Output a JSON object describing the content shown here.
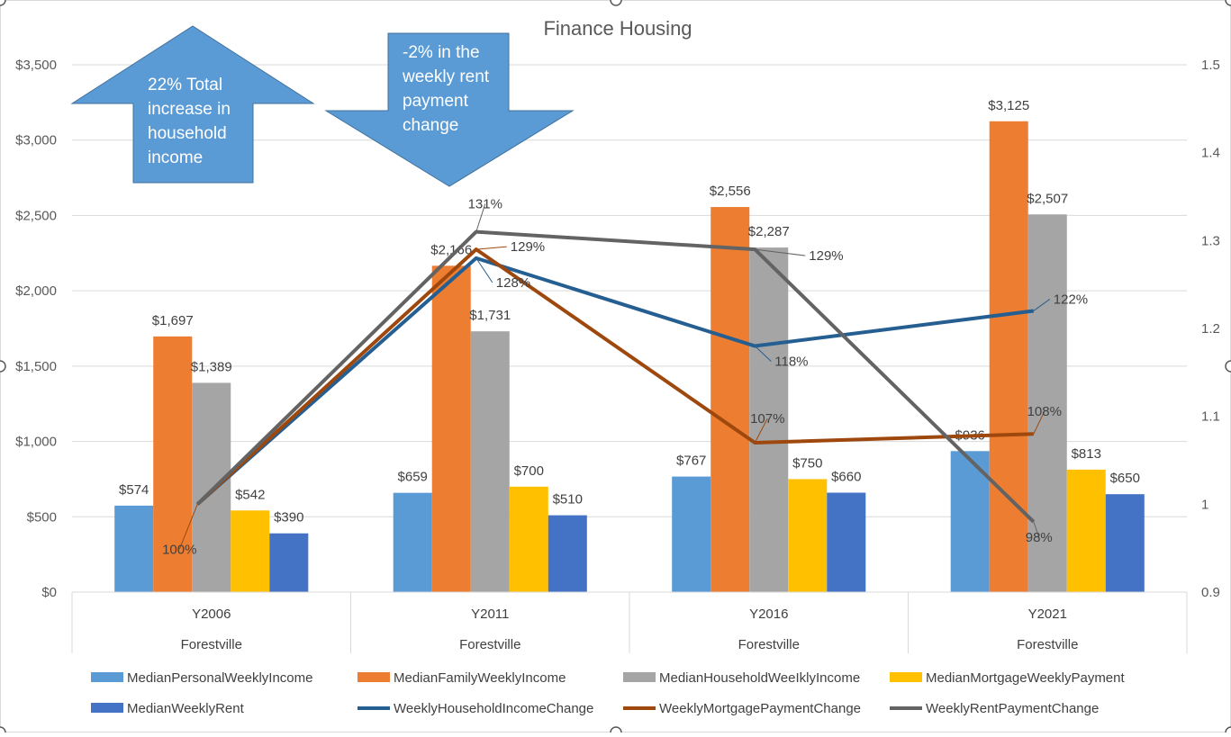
{
  "chart_data": {
    "type": "bar",
    "title": "Finance Housing",
    "categories": [
      "Y2006",
      "Y2011",
      "Y2016",
      "Y2021"
    ],
    "category_group": "Forestville",
    "y_left": {
      "min": 0,
      "max": 3500,
      "ticks": [
        "$0",
        "$500",
        "$1,000",
        "$1,500",
        "$2,000",
        "$2,500",
        "$3,000",
        "$3,500"
      ]
    },
    "y_right": {
      "min": 0.9,
      "max": 1.5,
      "ticks": [
        "0.9",
        "1",
        "1.1",
        "1.2",
        "1.3",
        "1.4",
        "1.5"
      ]
    },
    "bar_series": [
      {
        "name": "MedianPersonalWeeklyIncome",
        "color": "#5b9bd5",
        "values": [
          574,
          659,
          767,
          936
        ],
        "labels": [
          "$574",
          "$659",
          "$767",
          "$936"
        ]
      },
      {
        "name": "MedianFamilyWeeklyIncome",
        "color": "#ed7d31",
        "values": [
          1697,
          2166,
          2556,
          3125
        ],
        "labels": [
          "$1,697",
          "$2,166",
          "$2,556",
          "$3,125"
        ]
      },
      {
        "name": "MedianHouseholdWeeIklyIncome",
        "color": "#a5a5a5",
        "values": [
          1389,
          1731,
          2287,
          2507
        ],
        "labels": [
          "$1,389",
          "$1,731",
          "$2,287",
          "$2,507"
        ]
      },
      {
        "name": "MedianMortgageWeeklyPayment",
        "color": "#ffc000",
        "values": [
          542,
          700,
          750,
          813
        ],
        "labels": [
          "$542",
          "$700",
          "$750",
          "$813"
        ]
      },
      {
        "name": "MedianWeeklyRent",
        "color": "#4472c4",
        "values": [
          390,
          510,
          660,
          650
        ],
        "labels": [
          "$390",
          "$510",
          "$660",
          "$650"
        ]
      }
    ],
    "line_series": [
      {
        "name": "WeeklyHouseholdIncomeChange",
        "color": "#255e91",
        "values": [
          1.0,
          1.28,
          1.18,
          1.22
        ],
        "labels": [
          "",
          "128%",
          "118%",
          "122%"
        ]
      },
      {
        "name": "WeeklyMortgagePaymentChange",
        "color": "#9e480e",
        "values": [
          1.0,
          1.29,
          1.07,
          1.08
        ],
        "labels": [
          "100%",
          "129%",
          "107%",
          "108%"
        ]
      },
      {
        "name": "WeeklyRentPaymentChange",
        "color": "#636363",
        "values": [
          1.0,
          1.31,
          1.29,
          0.98
        ],
        "labels": [
          "",
          "131%",
          "129%",
          "98%"
        ]
      }
    ],
    "legend": "bottom",
    "grid": true
  },
  "annotations": {
    "up_arrow": "22% Total\nincrease in\nhousehold\nincome",
    "down_arrow": "-2% in the\nweekly rent\npayment\nchange",
    "arrow_color": "#5b9bd5"
  }
}
